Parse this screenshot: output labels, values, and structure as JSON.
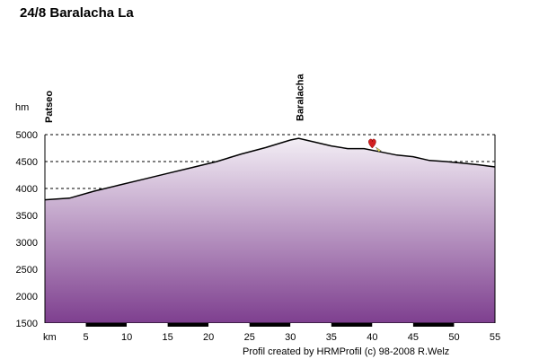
{
  "title": "24/8 Baralacha La",
  "footer": "Profil created by HRMProfil (c) 98-2008 R.Welz",
  "colors": {
    "fill_top": "#f3eef5",
    "fill_bottom": "#7e3f8f",
    "line": "#000000",
    "grid": "#000000",
    "marker": "#d32020"
  },
  "chart_data": {
    "type": "area",
    "title": "24/8 Baralacha La",
    "xlabel": "km",
    "ylabel": "hm",
    "xlim": [
      0,
      55
    ],
    "ylim": [
      1500,
      5000
    ],
    "x_ticks": [
      5,
      10,
      15,
      20,
      25,
      30,
      35,
      40,
      45,
      50,
      55
    ],
    "y_ticks": [
      1500,
      2000,
      2500,
      3000,
      3500,
      4000,
      4500,
      5000
    ],
    "grid": "horizontal-dashed",
    "series": [
      {
        "x": [
          0,
          3,
          6,
          9,
          12,
          15,
          18,
          21,
          24,
          27,
          30,
          31,
          33,
          35,
          37,
          39,
          41,
          43,
          45,
          47,
          49,
          51,
          53,
          55
        ],
        "y": [
          3790,
          3820,
          3950,
          4060,
          4170,
          4280,
          4390,
          4500,
          4640,
          4760,
          4900,
          4930,
          4860,
          4790,
          4740,
          4740,
          4680,
          4620,
          4590,
          4520,
          4500,
          4470,
          4440,
          4400
        ]
      }
    ],
    "annotations": [
      {
        "label": "Patseo",
        "x": 0,
        "y": null,
        "kind": "waypoint-label"
      },
      {
        "label": "Baralacha",
        "x": 31,
        "y": 4930,
        "kind": "waypoint-label"
      },
      {
        "label": "",
        "x": 40,
        "y": 4800,
        "kind": "heart-marker"
      }
    ]
  }
}
